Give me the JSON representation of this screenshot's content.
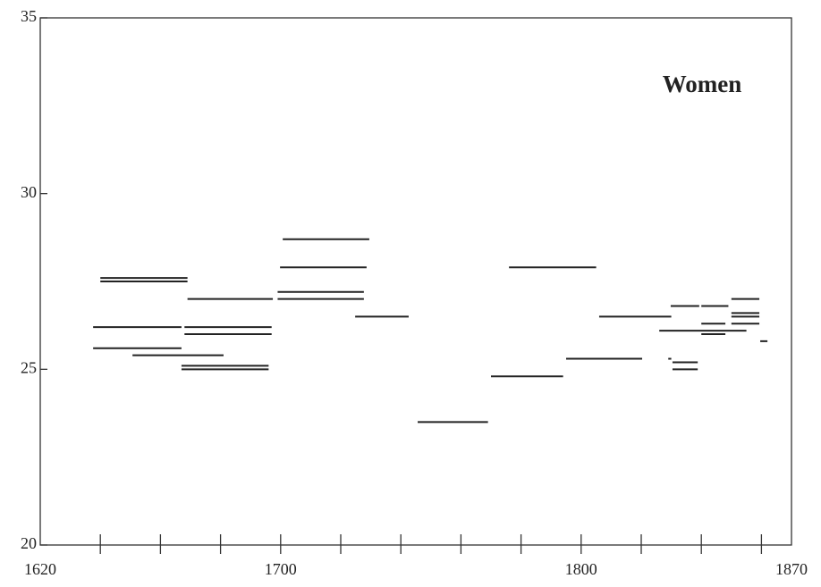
{
  "chart_data": {
    "type": "segment",
    "annotation": "Women",
    "xlim": [
      1620,
      1870
    ],
    "ylim": [
      20,
      35
    ],
    "xticks": [
      1620,
      1700,
      1800,
      1870
    ],
    "xminor_ticks": [
      1640,
      1660,
      1680,
      1700,
      1720,
      1740,
      1760,
      1780,
      1800,
      1820,
      1840,
      1860
    ],
    "yticks": [
      20,
      25,
      30,
      35
    ],
    "color": "#222",
    "x_start": [
      1640,
      1640,
      1637.6,
      1637.6,
      1650.7,
      1669,
      1668,
      1668,
      1667,
      1667,
      1700.7,
      1699.8,
      1699,
      1699,
      1724.8,
      1745.6,
      1770,
      1776,
      1795,
      1806,
      1829.8,
      1840,
      1826,
      1840,
      1840,
      1850,
      1850,
      1850,
      1850,
      1829,
      1830.4,
      1830.4,
      1859.6
    ],
    "x_end": [
      1669,
      1669,
      1667,
      1667,
      1681,
      1697.4,
      1697,
      1697,
      1696,
      1696,
      1729.5,
      1728.6,
      1727.7,
      1727.7,
      1742.6,
      1769,
      1794,
      1805,
      1820.3,
      1830,
      1839.3,
      1849,
      1855,
      1848,
      1848,
      1859.3,
      1859.3,
      1859.3,
      1859.3,
      1830,
      1838.8,
      1838.8,
      1862
    ],
    "values": [
      27.6,
      27.5,
      26.2,
      25.6,
      25.4,
      27.0,
      26.2,
      26.0,
      25.1,
      25.0,
      28.7,
      27.9,
      27.2,
      27.0,
      26.5,
      23.5,
      24.8,
      27.9,
      25.3,
      26.5,
      26.8,
      26.8,
      26.1,
      26.3,
      26.0,
      27.0,
      26.6,
      26.5,
      26.3,
      25.3,
      25.2,
      25.0,
      25.8
    ]
  }
}
